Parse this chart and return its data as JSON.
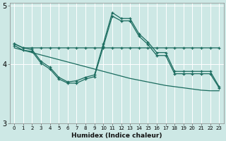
{
  "xlabel": "Humidex (Indice chaleur)",
  "bg_color": "#cde8e5",
  "line_color": "#1a6b5e",
  "grid_color": "#ffffff",
  "xlim_min": -0.5,
  "xlim_max": 23.5,
  "ylim_min": 3.0,
  "ylim_max": 5.05,
  "yticks": [
    3,
    4,
    5
  ],
  "line_flat_y": [
    4.35,
    4.28,
    4.28,
    4.28,
    4.28,
    4.28,
    4.28,
    4.28,
    4.28,
    4.28,
    4.28,
    4.28,
    4.28,
    4.28,
    4.28,
    4.28,
    4.28,
    4.28,
    4.28,
    4.28,
    4.28,
    4.28,
    4.28,
    4.28
  ],
  "line_decline_y": [
    4.28,
    4.24,
    4.2,
    4.16,
    4.12,
    4.08,
    4.04,
    4.0,
    3.96,
    3.92,
    3.88,
    3.84,
    3.8,
    3.76,
    3.73,
    3.7,
    3.67,
    3.64,
    3.62,
    3.6,
    3.58,
    3.56,
    3.55,
    3.55
  ],
  "line_wave1_y": [
    4.35,
    4.28,
    4.25,
    4.05,
    3.95,
    3.78,
    3.7,
    3.72,
    3.78,
    3.82,
    4.35,
    4.88,
    4.78,
    4.78,
    4.52,
    4.38,
    4.2,
    4.2,
    3.88,
    3.88,
    3.88,
    3.88,
    3.88,
    3.62
  ],
  "line_wave2_y": [
    4.32,
    4.24,
    4.22,
    4.02,
    3.92,
    3.75,
    3.68,
    3.68,
    3.75,
    3.79,
    4.3,
    4.82,
    4.74,
    4.74,
    4.48,
    4.34,
    4.15,
    4.15,
    3.84,
    3.84,
    3.84,
    3.84,
    3.84,
    3.6
  ]
}
